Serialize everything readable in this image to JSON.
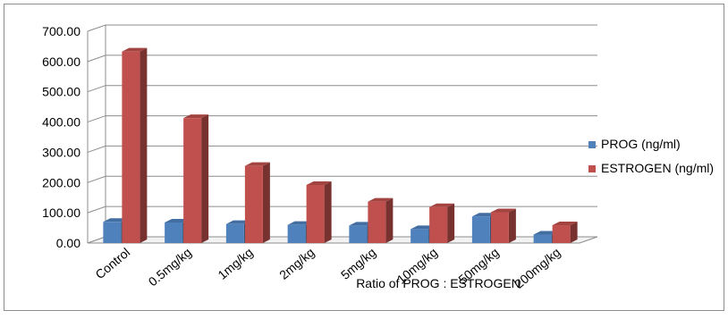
{
  "chart_data": {
    "type": "bar",
    "style": "3d-clustered-column",
    "categories": [
      "Control",
      "0.5mg/kg",
      "1mg/kg",
      "2mg/kg",
      "5mg/kg",
      "10mg/kg",
      "50mg/kg",
      "200mg/kg"
    ],
    "series": [
      {
        "name": "PROG (ng/ml)",
        "color": "#4f81bd",
        "values": [
          70,
          68,
          63,
          60,
          58,
          46,
          88,
          28
        ]
      },
      {
        "name": "ESTROGEN (ng/ml)",
        "color": "#c0504d",
        "values": [
          633,
          413,
          255,
          192,
          137,
          119,
          102,
          59
        ]
      }
    ],
    "y_ticks": [
      "0.00",
      "100.00",
      "200.00",
      "300.00",
      "400.00",
      "500.00",
      "600.00",
      "700.00"
    ],
    "ylim": [
      0,
      700
    ],
    "xlabel": "Ratio of PROG : ESTROGEN",
    "ylabel": "",
    "grid": true,
    "legend_position": "right"
  }
}
